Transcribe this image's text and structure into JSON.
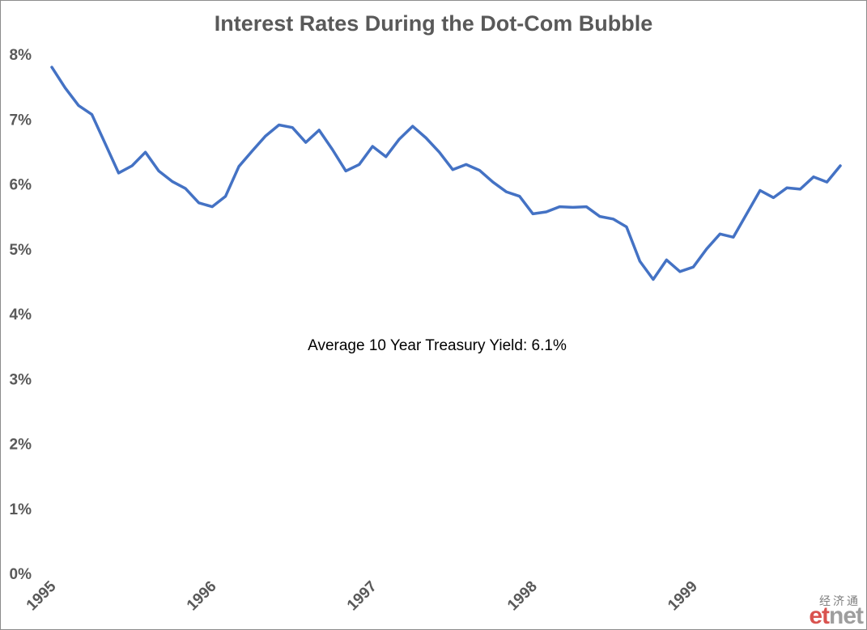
{
  "chart_data": {
    "type": "line",
    "title": "Interest Rates During the Dot-Com Bubble",
    "xlabel": "",
    "ylabel": "",
    "annotation": "Average 10 Year Treasury Yield: 6.1%",
    "x_ticks": [
      "1995",
      "1996",
      "1997",
      "1998",
      "1999"
    ],
    "y_ticks": [
      "0%",
      "1%",
      "2%",
      "3%",
      "4%",
      "5%",
      "6%",
      "7%",
      "8%"
    ],
    "ylim": [
      0,
      8
    ],
    "xlim": [
      "1995-01",
      "1999-12"
    ],
    "grid": false,
    "legend": "none",
    "series": [
      {
        "color": "#4472c4",
        "x": [
          "1995-01",
          "1995-02",
          "1995-03",
          "1995-04",
          "1995-05",
          "1995-06",
          "1995-07",
          "1995-08",
          "1995-09",
          "1995-10",
          "1995-11",
          "1995-12",
          "1996-01",
          "1996-02",
          "1996-03",
          "1996-04",
          "1996-05",
          "1996-06",
          "1996-07",
          "1996-08",
          "1996-09",
          "1996-10",
          "1996-11",
          "1996-12",
          "1997-01",
          "1997-02",
          "1997-03",
          "1997-04",
          "1997-05",
          "1997-06",
          "1997-07",
          "1997-08",
          "1997-09",
          "1997-10",
          "1997-11",
          "1997-12",
          "1998-01",
          "1998-02",
          "1998-03",
          "1998-04",
          "1998-05",
          "1998-06",
          "1998-07",
          "1998-08",
          "1998-09",
          "1998-10",
          "1998-11",
          "1998-12",
          "1999-01",
          "1999-02",
          "1999-03",
          "1999-04",
          "1999-05",
          "1999-06",
          "1999-07",
          "1999-08",
          "1999-09",
          "1999-10",
          "1999-11",
          "1999-12"
        ],
        "values": [
          7.8,
          7.48,
          7.21,
          7.07,
          6.62,
          6.17,
          6.28,
          6.49,
          6.2,
          6.04,
          5.93,
          5.71,
          5.65,
          5.81,
          6.27,
          6.51,
          6.74,
          6.91,
          6.87,
          6.64,
          6.83,
          6.53,
          6.2,
          6.3,
          6.58,
          6.42,
          6.69,
          6.89,
          6.71,
          6.49,
          6.22,
          6.3,
          6.21,
          6.03,
          5.88,
          5.81,
          5.54,
          5.57,
          5.65,
          5.64,
          5.65,
          5.5,
          5.46,
          5.34,
          4.81,
          4.53,
          4.83,
          4.65,
          4.72,
          5.0,
          5.23,
          5.18,
          5.54,
          5.9,
          5.79,
          5.94,
          5.92,
          6.11,
          6.03,
          6.28
        ]
      }
    ]
  },
  "watermark": {
    "chinese": "经济通",
    "brand_e": "et",
    "brand_n": "net"
  }
}
